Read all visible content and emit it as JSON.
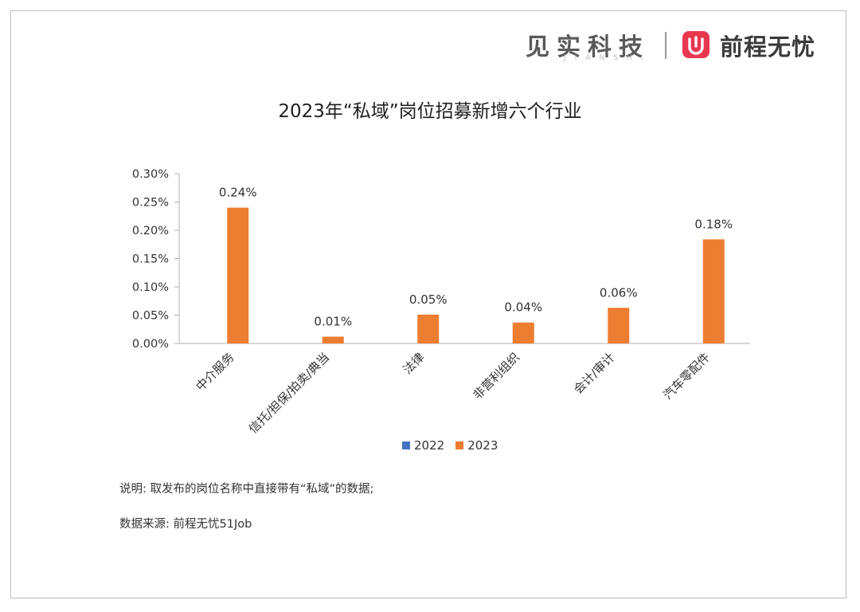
{
  "brand": {
    "left_name": "见实科技",
    "left_sub": "JIANSHI",
    "right_name": "前程无忧",
    "logo_color": "#e8384f"
  },
  "chart_data": {
    "type": "bar",
    "title": "2023年“私域”岗位招募新增六个行业",
    "categories": [
      "中介服务",
      "信托/担保/拍卖/典当",
      "法律",
      "非营利组织",
      "会计/审计",
      "汽车零配件"
    ],
    "series": [
      {
        "name": "2022",
        "color": "#4472c4",
        "values": [
          0,
          0,
          0,
          0,
          0,
          0
        ]
      },
      {
        "name": "2023",
        "color": "#ed7d31",
        "values": [
          0.24,
          0.012,
          0.051,
          0.037,
          0.063,
          0.184
        ],
        "labels": [
          "0.24%",
          "0.01%",
          "0.05%",
          "0.04%",
          "0.06%",
          "0.18%"
        ]
      }
    ],
    "ylim": [
      0,
      0.3
    ],
    "yticks": [
      "0.00%",
      "0.05%",
      "0.10%",
      "0.15%",
      "0.20%",
      "0.25%",
      "0.30%"
    ],
    "xlabel": "",
    "ylabel": "",
    "legend_position": "bottom",
    "grid": false
  },
  "notes": {
    "line1": "说明: 取发布的岗位名称中直接带有“私域”的数据;",
    "line2": "数据来源: 前程无忧51Job"
  }
}
